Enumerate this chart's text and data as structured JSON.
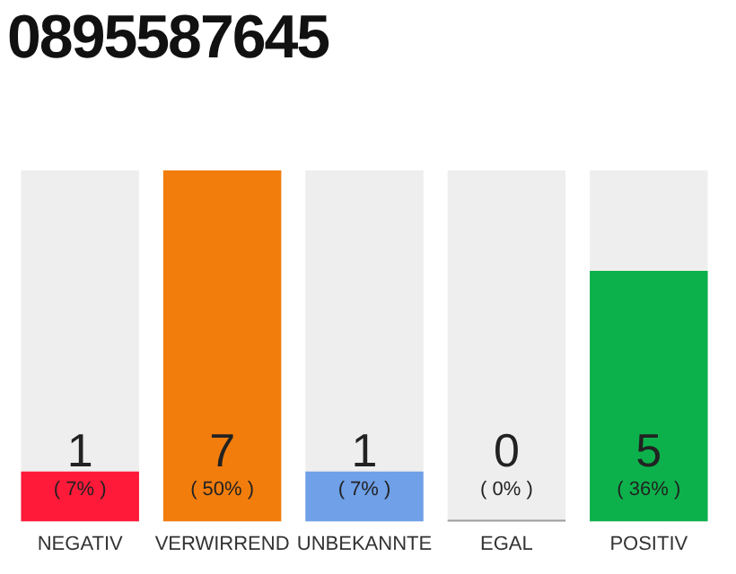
{
  "chart_data": {
    "type": "bar",
    "title": "0895587645",
    "categories": [
      "NEGATIV",
      "VERWIRREND",
      "UNBEKANNTE",
      "EGAL",
      "POSITIV"
    ],
    "values": [
      1,
      7,
      1,
      0,
      5
    ],
    "colors": [
      "#ff1a3a",
      "#f27d0c",
      "#6fa0e8",
      "#9e9e9e",
      "#0db14b"
    ],
    "value_labels": [
      "1\n( 7% )",
      "7\n( 50% )",
      "1\n( 7% )",
      "0\n( 0% )",
      "5\n( 36% )"
    ],
    "grid": false,
    "legend": false
  }
}
